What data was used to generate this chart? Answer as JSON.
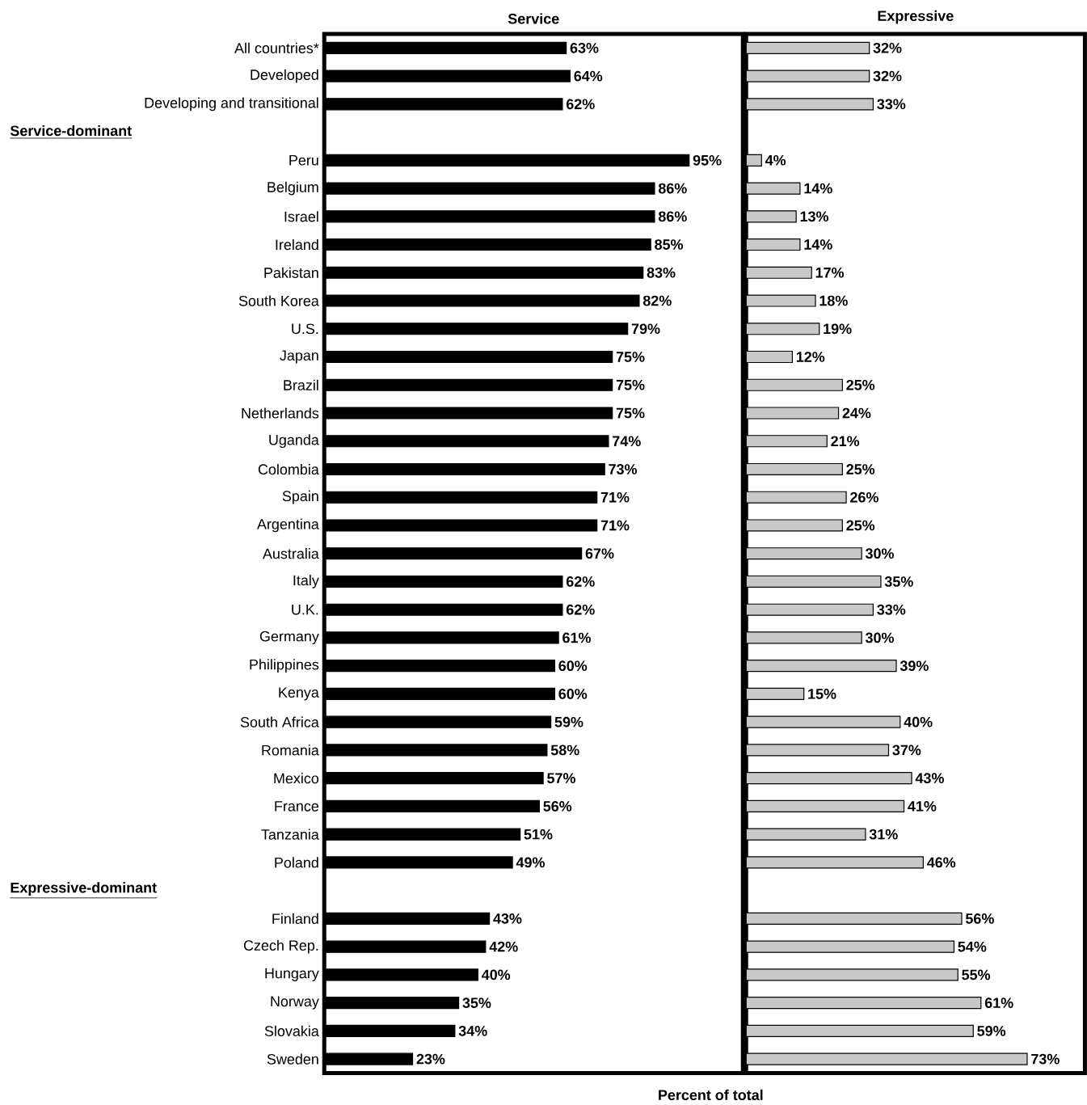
{
  "chart_data": [
    {
      "type": "bar",
      "orientation": "horizontal",
      "title": "Service",
      "xlabel": "Percent of total",
      "tick_labels": "y",
      "xlim": [
        0,
        109
      ],
      "color": "#000000",
      "annotations": [
        "Service-dominant",
        "Expressive-dominant"
      ],
      "categories": [
        "All countries*",
        "Developed",
        "Developing and transitional",
        null,
        "Peru",
        "Belgium",
        "Israel",
        "Ireland",
        "Pakistan",
        "South Korea",
        "U.S.",
        "Japan",
        "Brazil",
        "Netherlands",
        "Uganda",
        "Colombia",
        "Spain",
        "Argentina",
        "Australia",
        "Italy",
        "U.K.",
        "Germany",
        "Philippines",
        "Kenya",
        "South Africa",
        "Romania",
        "Mexico",
        "France",
        "Tanzania",
        "Poland",
        null,
        "Finland",
        "Czech Rep.",
        "Hungary",
        "Norway",
        "Slovakia",
        "Sweden"
      ],
      "values": [
        63,
        64,
        62,
        null,
        95,
        86,
        86,
        85,
        83,
        82,
        79,
        75,
        75,
        75,
        74,
        73,
        71,
        71,
        67,
        62,
        62,
        61,
        60,
        60,
        59,
        58,
        57,
        56,
        51,
        49,
        null,
        43,
        42,
        40,
        35,
        34,
        23
      ],
      "value_labels": [
        "63%",
        "64%",
        "62%",
        null,
        "95%",
        "86%",
        "86%",
        "85%",
        "83%",
        "82%",
        "79%",
        "75%",
        "75%",
        "75%",
        "74%",
        "73%",
        "71%",
        "71%",
        "67%",
        "62%",
        "62%",
        "61%",
        "60%",
        "60%",
        "59%",
        "58%",
        "57%",
        "56%",
        "51%",
        "49%",
        null,
        "43%",
        "42%",
        "40%",
        "35%",
        "34%",
        "23%"
      ]
    },
    {
      "type": "bar",
      "orientation": "horizontal",
      "title": "Expressive",
      "tick_labels": false,
      "xlim": [
        0,
        88
      ],
      "color": "#c8c8c8",
      "values": [
        32,
        32,
        33,
        null,
        4,
        14,
        13,
        14,
        17,
        18,
        19,
        12,
        25,
        24,
        21,
        25,
        26,
        25,
        30,
        35,
        33,
        30,
        39,
        15,
        40,
        37,
        43,
        41,
        31,
        46,
        null,
        56,
        54,
        55,
        61,
        59,
        73
      ],
      "value_labels": [
        "32%",
        "32%",
        "33%",
        null,
        "4%",
        "14%",
        "13%",
        "14%",
        "17%",
        "18%",
        "19%",
        "12%",
        "25%",
        "24%",
        "21%",
        "25%",
        "26%",
        "25%",
        "30%",
        "35%",
        "33%",
        "30%",
        "39%",
        "15%",
        "40%",
        "37%",
        "43%",
        "41%",
        "31%",
        "46%",
        null,
        "56%",
        "54%",
        "55%",
        "61%",
        "59%",
        "73%"
      ]
    }
  ]
}
